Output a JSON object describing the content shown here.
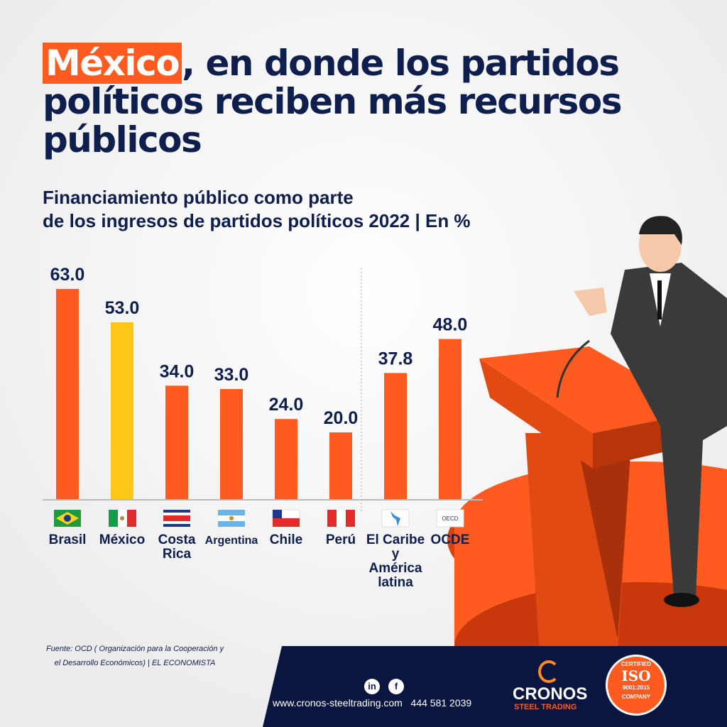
{
  "title": {
    "highlight": "México",
    "rest": ", en donde los partidos políticos reciben más recursos públicos"
  },
  "subtitle": {
    "line1": "Financiamiento público como parte",
    "line2": "de los ingresos de partidos políticos 2022 | En %"
  },
  "chart_data": {
    "type": "bar",
    "title": "Financiamiento público como parte de los ingresos de partidos políticos 2022 | En %",
    "categories": [
      "Brasil",
      "México",
      "Costa Rica",
      "Argentina",
      "Chile",
      "Perú",
      "El Caribe y América latina",
      "OCDE"
    ],
    "values": [
      63.0,
      53.0,
      34.0,
      33.0,
      24.0,
      20.0,
      37.8,
      48.0
    ],
    "labels": [
      "63.0",
      "53.0",
      "34.0",
      "33.0",
      "24.0",
      "20.0",
      "37.8",
      "48.0"
    ],
    "highlight_index": 1,
    "colors": {
      "bar": "#ff5a1f",
      "highlight": "#ffc61a"
    },
    "icons": [
      "flag-brazil",
      "flag-mexico",
      "flag-costa-rica",
      "flag-argentina",
      "flag-chile",
      "flag-peru",
      "map-latin-america",
      "oecd-logo"
    ],
    "ylim": [
      0,
      63
    ],
    "grid": false
  },
  "footer": {
    "source_line1": "Fuente: OCD ( Organización para la Cooperación y",
    "source_line2": "el Desarrollo Económicos) | EL ECONOMISTA",
    "website": "www.cronos-steeltrading.com",
    "phone": "444 581 2039",
    "linkedin": "in",
    "facebook": "f",
    "brand": "CRONOS",
    "brand_sub": "STEEL TRADING",
    "iso_top": "CERTIFIED",
    "iso": "ISO",
    "iso_num": "9001:2015",
    "iso_bottom": "COMPANY"
  }
}
